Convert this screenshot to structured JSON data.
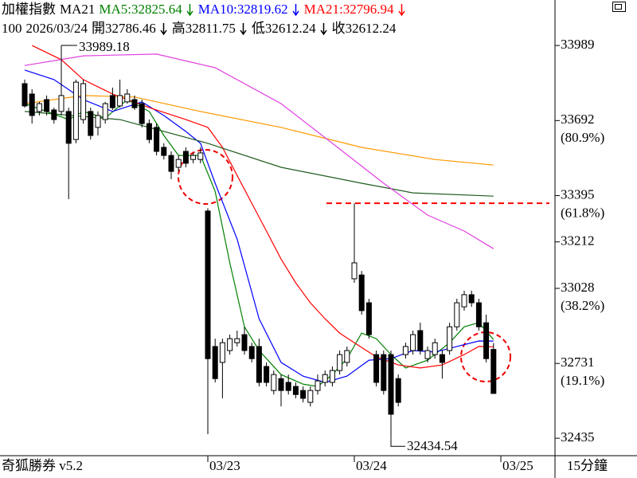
{
  "chart_data": {
    "type": "candlestick",
    "title": "加權指數",
    "subtitle": "MA21",
    "info": [
      "100",
      "2026/03/24",
      "開32786.46",
      "高32811.75",
      "低32612.24",
      "收32612.24"
    ],
    "categories": [
      null,
      null,
      null,
      null,
      null,
      null,
      null,
      null,
      null,
      null,
      null,
      null,
      null,
      null,
      null,
      null,
      null,
      null,
      null,
      null,
      null,
      null,
      null,
      null,
      null,
      "03/23",
      null,
      null,
      null,
      null,
      null,
      null,
      null,
      null,
      null,
      null,
      null,
      null,
      null,
      null,
      null,
      null,
      null,
      null,
      null,
      "03/24",
      null,
      null,
      null,
      null,
      null,
      null,
      null,
      null,
      null,
      null,
      null,
      null,
      null,
      null,
      null,
      null,
      null,
      null,
      null,
      "03/25"
    ],
    "candles": {
      "up_color": "#ffffff",
      "down_color": "#000000",
      "open": [
        33838,
        33797,
        33728,
        33775,
        33734,
        33728,
        33728,
        33617,
        33696,
        33728,
        33665,
        33696,
        33791,
        33750,
        33766,
        33775,
        33759,
        33680,
        33665,
        33586,
        33554,
        33507,
        33570,
        33538,
        33538,
        33334,
        32798,
        32735,
        32782,
        32813,
        32845,
        32798,
        32798,
        32719,
        32624,
        32671,
        32656,
        32640,
        32624,
        32577,
        32624,
        32656,
        32656,
        32703,
        32735,
        33066,
        33081,
        32971,
        32766,
        32766,
        32766,
        32671,
        32766,
        32782,
        32861,
        32750,
        32766,
        32766,
        32782,
        32876,
        32955,
        33003,
        32971,
        32892,
        32786.46,
        null
      ],
      "high": [
        33854,
        33816,
        33766,
        33791,
        33743,
        33989.18,
        33743,
        33854,
        33854,
        33743,
        33728,
        33766,
        33822,
        33854,
        33816,
        33791,
        33775,
        33696,
        33680,
        33602,
        33570,
        33554,
        33586,
        33564,
        33586,
        33345,
        32829,
        32829,
        32845,
        32861,
        32876,
        32813,
        32829,
        32735,
        32703,
        32687,
        32687,
        32656,
        32640,
        32640,
        32687,
        32703,
        32719,
        32782,
        32798,
        33365,
        33097,
        32987,
        32782,
        32782,
        32782,
        32687,
        32813,
        32861,
        32892,
        32798,
        32829,
        32782,
        32892,
        32987,
        33019,
        33019,
        32987,
        32924,
        32811.75,
        null
      ],
      "low": [
        33743,
        33680,
        33712,
        33712,
        33680,
        33712,
        33381,
        33602,
        33680,
        33617,
        33633,
        33680,
        33734,
        33743,
        33759,
        33734,
        33665,
        33602,
        33554,
        33538,
        33460,
        33491,
        33507,
        33523,
        33523,
        32451,
        32656,
        32593,
        32766,
        32798,
        32766,
        32735,
        32640,
        32640,
        32608,
        32561,
        32608,
        32593,
        32577,
        32561,
        32608,
        32640,
        32640,
        32687,
        32719,
        33050,
        32924,
        32829,
        32640,
        32608,
        32434.54,
        32561,
        32750,
        32766,
        32766,
        32735,
        32750,
        32671,
        32766,
        32861,
        32940,
        32955,
        32861,
        32735,
        32612.24,
        null
      ],
      "close": [
        33750,
        33712,
        33759,
        33728,
        33696,
        33791,
        33602,
        33844,
        33838,
        33633,
        33712,
        33759,
        33743,
        33791,
        33797,
        33743,
        33680,
        33617,
        33570,
        33554,
        33491,
        33538,
        33523,
        33554,
        33564,
        32750,
        32671,
        32813,
        32829,
        32829,
        32782,
        32750,
        32656,
        32656,
        32687,
        32624,
        32624,
        32608,
        32593,
        32624,
        32662,
        32687,
        32703,
        32766,
        32782,
        33129,
        32940,
        32845,
        32656,
        32624,
        32530,
        32577,
        32798,
        32845,
        32782,
        32782,
        32813,
        32735,
        32876,
        32971,
        33003,
        32971,
        32876,
        32750,
        32612.24,
        null
      ]
    },
    "series": [
      {
        "name": "MA5:32825.64",
        "color": "#008000",
        "x": [
          0,
          3,
          6,
          8,
          11,
          14,
          17,
          19,
          21,
          24,
          26,
          28,
          30,
          32,
          35,
          38,
          40,
          42,
          44,
          46,
          48,
          50,
          52,
          55,
          58,
          60,
          62,
          64
        ],
        "values": [
          33759,
          33728,
          33696,
          33728,
          33702,
          33775,
          33728,
          33633,
          33554,
          33554,
          33412,
          33129,
          32876,
          32782,
          32687,
          32649,
          32640,
          32687,
          32750,
          32851,
          32829,
          32766,
          32713,
          32744,
          32813,
          32876,
          32892,
          32825.64
        ]
      },
      {
        "name": "MA10:32819.62",
        "color": "#0000ff",
        "x": [
          0,
          4,
          8,
          12,
          16,
          19,
          22,
          24,
          26,
          29,
          32,
          35,
          38,
          41,
          44,
          47,
          50,
          53,
          56,
          59,
          62,
          64
        ],
        "values": [
          33892,
          33854,
          33775,
          33728,
          33766,
          33712,
          33649,
          33602,
          33444,
          33223,
          32908,
          32735,
          32681,
          32656,
          32681,
          32744,
          32750,
          32782,
          32776,
          32798,
          32820,
          32819.62
        ]
      },
      {
        "name": "MA21:32796.94",
        "color": "#ff0000",
        "x": [
          1,
          5,
          8,
          12,
          17,
          22,
          25,
          27,
          29,
          31,
          33,
          35,
          37,
          39,
          41,
          43,
          45,
          48,
          51,
          54,
          57,
          60,
          62,
          64
        ],
        "values": [
          33989,
          33933,
          33854,
          33797,
          33743,
          33696,
          33665,
          33586,
          33475,
          33365,
          33255,
          33144,
          33050,
          32971,
          32908,
          32851,
          32813,
          32757,
          32725,
          32713,
          32725,
          32766,
          32798,
          32796.94
        ]
      },
      {
        "color": "#ff9900",
        "x": [
          0,
          8,
          15,
          24,
          35,
          46,
          56,
          64
        ],
        "values": [
          33759,
          33791,
          33785,
          33728,
          33665,
          33586,
          33538,
          33516
        ]
      },
      {
        "color": "#1f5c1f",
        "x": [
          0,
          13,
          25,
          35,
          46,
          53,
          64
        ],
        "values": [
          33728,
          33696,
          33602,
          33507,
          33444,
          33406,
          33393
        ]
      },
      {
        "color": "#e040e0",
        "x": [
          0,
          8,
          18,
          26,
          35,
          42,
          49,
          55,
          60,
          64
        ],
        "values": [
          33910,
          33948,
          33955,
          33901,
          33759,
          33602,
          33444,
          33318,
          33255,
          33185
        ]
      }
    ],
    "ylim": [
      32366,
      34169
    ],
    "yticks": [
      33989,
      33692,
      33395,
      33212,
      33028,
      32731,
      32435
    ],
    "retracements": [
      {
        "value": 33692,
        "label": "(80.9%)"
      },
      {
        "value": 33395,
        "label": "(61.8%)"
      },
      {
        "value": 33028,
        "label": "(38.2%)"
      },
      {
        "value": 32731,
        "label": "(19.1%)"
      }
    ],
    "hline": {
      "value": 33365,
      "color": "#ff0000"
    },
    "annotations": [
      "33989.18",
      "32434.54"
    ],
    "footer": "奇狐勝券 v5.2",
    "period": "15分鐘"
  }
}
